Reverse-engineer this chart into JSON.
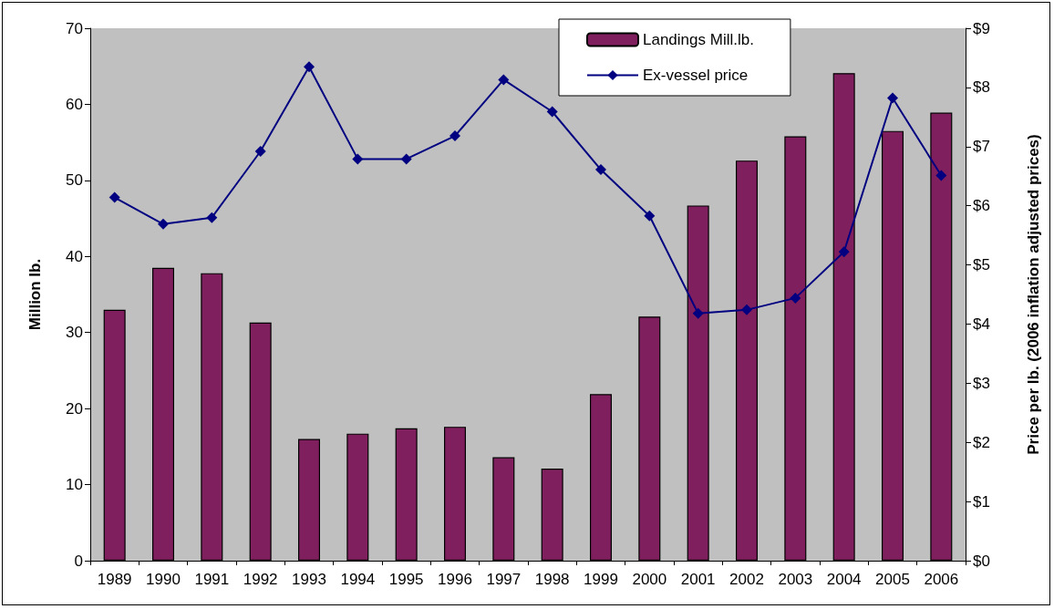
{
  "chart_data": {
    "type": "bar",
    "categories": [
      "1989",
      "1990",
      "1991",
      "1992",
      "1993",
      "1994",
      "1995",
      "1996",
      "1997",
      "1998",
      "1999",
      "2000",
      "2001",
      "2002",
      "2003",
      "2004",
      "2005",
      "2006"
    ],
    "series": [
      {
        "name": "Landings Mill.lb.",
        "color": "#801f5e",
        "values": [
          33.0,
          38.5,
          37.8,
          31.3,
          16.0,
          16.7,
          17.4,
          17.6,
          13.6,
          12.1,
          21.9,
          32.1,
          46.7,
          52.6,
          55.8,
          64.1,
          56.5,
          58.9
        ]
      },
      {
        "name": "Ex-vessel price",
        "type": "line",
        "axis": "y2",
        "color": "#000080",
        "values": [
          6.14,
          5.69,
          5.8,
          6.92,
          8.35,
          6.79,
          6.79,
          7.18,
          8.13,
          7.59,
          6.61,
          5.83,
          4.18,
          4.24,
          4.44,
          5.22,
          7.82,
          6.51
        ]
      }
    ],
    "ylabel": "Million lb.",
    "y2label": "Price per lb. (2006 inflation adjusted prices)",
    "ylim": [
      0,
      70
    ],
    "yticks": [
      0,
      10,
      20,
      30,
      40,
      50,
      60,
      70
    ],
    "y2lim": [
      0,
      9
    ],
    "y2ticks": [
      {
        "value": 0,
        "label": "$0"
      },
      {
        "value": 1,
        "label": "$1"
      },
      {
        "value": 2,
        "label": "$2"
      },
      {
        "value": 3,
        "label": "$3"
      },
      {
        "value": 4,
        "label": "$4"
      },
      {
        "value": 5,
        "label": "$5"
      },
      {
        "value": 6,
        "label": "$6"
      },
      {
        "value": 7,
        "label": "$7"
      },
      {
        "value": 8,
        "label": "$8"
      },
      {
        "value": 9,
        "label": "$9"
      }
    ],
    "grid": false,
    "legend": "top",
    "marker": "diamond",
    "line_style": "solid"
  }
}
